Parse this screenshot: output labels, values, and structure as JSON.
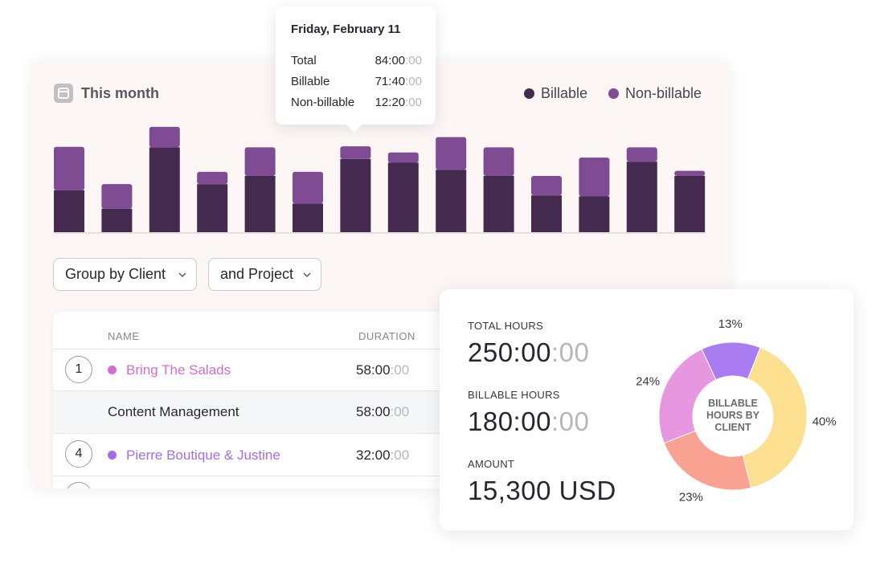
{
  "header": {
    "title": "This month"
  },
  "chart_data": [
    {
      "type": "bar",
      "stacked": true,
      "categories": [
        null,
        null,
        null,
        null,
        null,
        null,
        null,
        null,
        null,
        null,
        null,
        null,
        null,
        null
      ],
      "series": [
        {
          "name": "Billable",
          "color": "#432a4e",
          "values": [
            41,
            23,
            83,
            47,
            55,
            28,
            71.67,
            68,
            61,
            55,
            36,
            35,
            69,
            55
          ]
        },
        {
          "name": "Non-billable",
          "color": "#7f4c93",
          "values": [
            42.5,
            24,
            20,
            12,
            28,
            31,
            12.33,
            10,
            32,
            28,
            19,
            38,
            14,
            5
          ]
        }
      ],
      "ylim": [
        0,
        110
      ],
      "legend": "top-right"
    },
    {
      "type": "pie",
      "title": "BILLABLE HOURS BY CLIENT",
      "values": [
        13,
        40,
        23,
        24
      ],
      "value_labels": [
        "13%",
        "40%",
        "23%",
        "24%"
      ],
      "colors": [
        "#a97cf2",
        "#fde08f",
        "#f9a291",
        "#e797e0"
      ]
    }
  ],
  "tooltip": {
    "title": "Friday, February 11",
    "rows": [
      {
        "label": "Total",
        "value": "84:00",
        "seconds": ":00"
      },
      {
        "label": "Billable",
        "value": "71:40",
        "seconds": ":00"
      },
      {
        "label": "Non-billable",
        "value": "12:20",
        "seconds": ":00"
      }
    ]
  },
  "filters": [
    "Group by Client",
    "and Project"
  ],
  "table": {
    "columns": [
      "NAME",
      "DURATION"
    ],
    "rows": [
      {
        "rank": 1,
        "name": "Bring The Salads",
        "color": "#d56cd3",
        "duration": "58:00",
        "seconds": ":00"
      },
      {
        "name": "Content Management",
        "duration": "58:00",
        "seconds": ":00"
      },
      {
        "rank": 4,
        "name": "Pierre Boutique & Justine",
        "color": "#a06ee8",
        "duration": "32:00",
        "seconds": ":00"
      }
    ]
  },
  "stats": [
    {
      "label": "TOTAL HOURS",
      "value": "250:00",
      "seconds": ":00"
    },
    {
      "label": "BILLABLE HOURS",
      "value": "180:00",
      "seconds": ":00"
    },
    {
      "label": "AMOUNT",
      "value": "15,300 USD"
    }
  ]
}
